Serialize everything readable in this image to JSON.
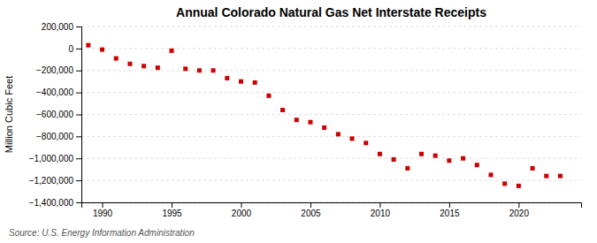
{
  "chart_data": {
    "type": "scatter",
    "title": "Annual Colorado Natural Gas Net Interstate Receipts",
    "ylabel": "Million Cubic Feet",
    "source": "Source: U.S. Energy Information Administration",
    "color": "#cc0000",
    "marker": "square",
    "grid": true,
    "xlim": [
      1988.5,
      2024.5
    ],
    "xticks": [
      1990,
      1995,
      2000,
      2005,
      2010,
      2015,
      2020
    ],
    "ylim": [
      -1400000,
      200000
    ],
    "yticks": [
      {
        "value": 200000,
        "label": "200,000"
      },
      0,
      {
        "value": -200000,
        "label": "−200,000"
      },
      {
        "value": -400000,
        "label": "−400,000"
      },
      {
        "value": -600000,
        "label": "−600,000"
      },
      {
        "value": -800000,
        "label": "−800,000"
      },
      {
        "value": -1000000,
        "label": "−1,000,000"
      },
      {
        "value": -1200000,
        "label": "−1,200,000"
      },
      {
        "value": -1400000,
        "label": "−1,400,000"
      }
    ],
    "x": [
      1989,
      1990,
      1991,
      1992,
      1993,
      1994,
      1995,
      1996,
      1997,
      1998,
      1999,
      2000,
      2001,
      2002,
      2003,
      2004,
      2005,
      2006,
      2007,
      2008,
      2009,
      2010,
      2011,
      2012,
      2013,
      2014,
      2015,
      2016,
      2017,
      2018,
      2019,
      2020,
      2021,
      2022,
      2023
    ],
    "values": [
      30000,
      -10000,
      -90000,
      -140000,
      -160000,
      -175000,
      -20000,
      -185000,
      -200000,
      -200000,
      -270000,
      -300000,
      -310000,
      -430000,
      -560000,
      -650000,
      -670000,
      -720000,
      -780000,
      -820000,
      -860000,
      -960000,
      -1010000,
      -1090000,
      -960000,
      -975000,
      -1020000,
      -1000000,
      -1060000,
      -1150000,
      -1230000,
      -1250000,
      -1090000,
      -1160000,
      -1160000
    ]
  }
}
